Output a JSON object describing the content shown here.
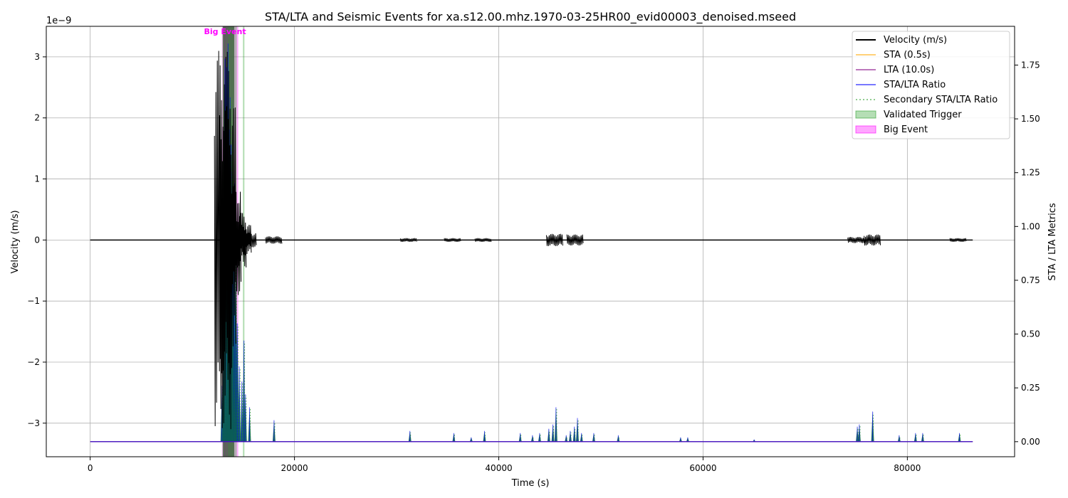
{
  "chart_data": {
    "type": "line",
    "title": "STA/LTA and Seismic Events for xa.s12.00.mhz.1970-03-25HR00_evid00003_denoised.mseed",
    "xlabel": "Time (s)",
    "ylabel_left": "Velocity (m/s)",
    "ylabel_right": "STA / LTA Metrics",
    "y_left_exponent_label": "1e−9",
    "xlim": [
      -4300,
      90500
    ],
    "ylim_left": [
      -3.55,
      3.5
    ],
    "ylim_right": [
      -0.07,
      1.93
    ],
    "x_ticks": [
      0,
      20000,
      40000,
      60000,
      80000
    ],
    "x_tick_labels": [
      "0",
      "20000",
      "40000",
      "60000",
      "80000"
    ],
    "y_left_ticks": [
      -3,
      -2,
      -1,
      0,
      1,
      2,
      3
    ],
    "y_left_tick_labels": [
      "−3",
      "−2",
      "−1",
      "0",
      "1",
      "2",
      "3"
    ],
    "y_right_ticks": [
      0,
      0.25,
      0.5,
      0.75,
      1.0,
      1.25,
      1.5,
      1.75
    ],
    "y_right_tick_labels": [
      "0.00",
      "0.25",
      "0.50",
      "0.75",
      "1.00",
      "1.25",
      "1.50",
      "1.75"
    ],
    "grid": true,
    "legend_position": "top-right",
    "series": [
      {
        "name": "Velocity (m/s)",
        "axis": "left",
        "color": "#000000",
        "style": "solid",
        "baseline": 0,
        "range": [
          0,
          86400
        ],
        "bursts": [
          {
            "x": 13000,
            "amp": 3.1
          },
          {
            "x": 13500,
            "amp": 2.2
          },
          {
            "x": 14000,
            "amp": 0.9
          },
          {
            "x": 14500,
            "amp": 0.45
          },
          {
            "x": 15000,
            "amp": 0.25
          },
          {
            "x": 15500,
            "amp": 0.12
          },
          {
            "x": 18000,
            "amp": 0.06
          },
          {
            "x": 31200,
            "amp": 0.03
          },
          {
            "x": 35500,
            "amp": 0.03
          },
          {
            "x": 38500,
            "amp": 0.03
          },
          {
            "x": 45500,
            "amp": 0.1
          },
          {
            "x": 47500,
            "amp": 0.09
          },
          {
            "x": 75000,
            "amp": 0.05
          },
          {
            "x": 76600,
            "amp": 0.09
          },
          {
            "x": 85000,
            "amp": 0.03
          }
        ]
      },
      {
        "name": "STA (0.5s)",
        "axis": "right",
        "color": "#ffa500",
        "style": "solid",
        "value": 0.0
      },
      {
        "name": "LTA (10.0s)",
        "axis": "right",
        "color": "#800080",
        "style": "solid",
        "value": 0.0
      },
      {
        "name": "STA/LTA Ratio",
        "axis": "right",
        "color": "#0000ff",
        "style": "solid",
        "spikes": [
          {
            "x": 12900,
            "y": 0.26
          },
          {
            "x": 13050,
            "y": 0.5
          },
          {
            "x": 13200,
            "y": 1.78
          },
          {
            "x": 13350,
            "y": 1.74
          },
          {
            "x": 13500,
            "y": 1.85
          },
          {
            "x": 13600,
            "y": 1.45
          },
          {
            "x": 13700,
            "y": 1.6
          },
          {
            "x": 13800,
            "y": 1.38
          },
          {
            "x": 13900,
            "y": 1.25
          },
          {
            "x": 14000,
            "y": 1.1
          },
          {
            "x": 14100,
            "y": 1.2
          },
          {
            "x": 14250,
            "y": 0.85
          },
          {
            "x": 14400,
            "y": 0.55
          },
          {
            "x": 14600,
            "y": 0.35
          },
          {
            "x": 14850,
            "y": 0.28
          },
          {
            "x": 15050,
            "y": 0.47
          },
          {
            "x": 15200,
            "y": 0.22
          },
          {
            "x": 15600,
            "y": 0.16
          },
          {
            "x": 18000,
            "y": 0.1
          },
          {
            "x": 31300,
            "y": 0.05
          },
          {
            "x": 35600,
            "y": 0.04
          },
          {
            "x": 37300,
            "y": 0.02
          },
          {
            "x": 38600,
            "y": 0.05
          },
          {
            "x": 42100,
            "y": 0.04
          },
          {
            "x": 43300,
            "y": 0.03
          },
          {
            "x": 44000,
            "y": 0.04
          },
          {
            "x": 44900,
            "y": 0.06
          },
          {
            "x": 45300,
            "y": 0.08
          },
          {
            "x": 45600,
            "y": 0.16
          },
          {
            "x": 46600,
            "y": 0.03
          },
          {
            "x": 47000,
            "y": 0.05
          },
          {
            "x": 47400,
            "y": 0.07
          },
          {
            "x": 47700,
            "y": 0.11
          },
          {
            "x": 48100,
            "y": 0.04
          },
          {
            "x": 49300,
            "y": 0.04
          },
          {
            "x": 51700,
            "y": 0.03
          },
          {
            "x": 57800,
            "y": 0.02
          },
          {
            "x": 58500,
            "y": 0.02
          },
          {
            "x": 65000,
            "y": 0.01
          },
          {
            "x": 75100,
            "y": 0.07
          },
          {
            "x": 75300,
            "y": 0.08
          },
          {
            "x": 76600,
            "y": 0.14
          },
          {
            "x": 79200,
            "y": 0.03
          },
          {
            "x": 80800,
            "y": 0.04
          },
          {
            "x": 81500,
            "y": 0.04
          },
          {
            "x": 85100,
            "y": 0.04
          }
        ]
      },
      {
        "name": "Secondary STA/LTA Ratio",
        "axis": "right",
        "color": "#2ca02c",
        "style": "dotted"
      },
      {
        "name": "Validated Trigger",
        "axis": "right",
        "color": "#2ca02c",
        "style": "fill",
        "regions": [
          [
            12950,
            13100
          ],
          [
            13250,
            13350
          ],
          [
            13450,
            14350
          ],
          [
            14950,
            15100
          ]
        ]
      },
      {
        "name": "Big Event",
        "axis": "right",
        "color": "#ff00ff",
        "style": "fill",
        "regions": [
          [
            12900,
            14500
          ]
        ]
      }
    ],
    "annotations": [
      {
        "text": "Big Event",
        "x": 13200,
        "color": "#ff00ff"
      }
    ],
    "dark_band": [
      13000,
      14100
    ]
  }
}
